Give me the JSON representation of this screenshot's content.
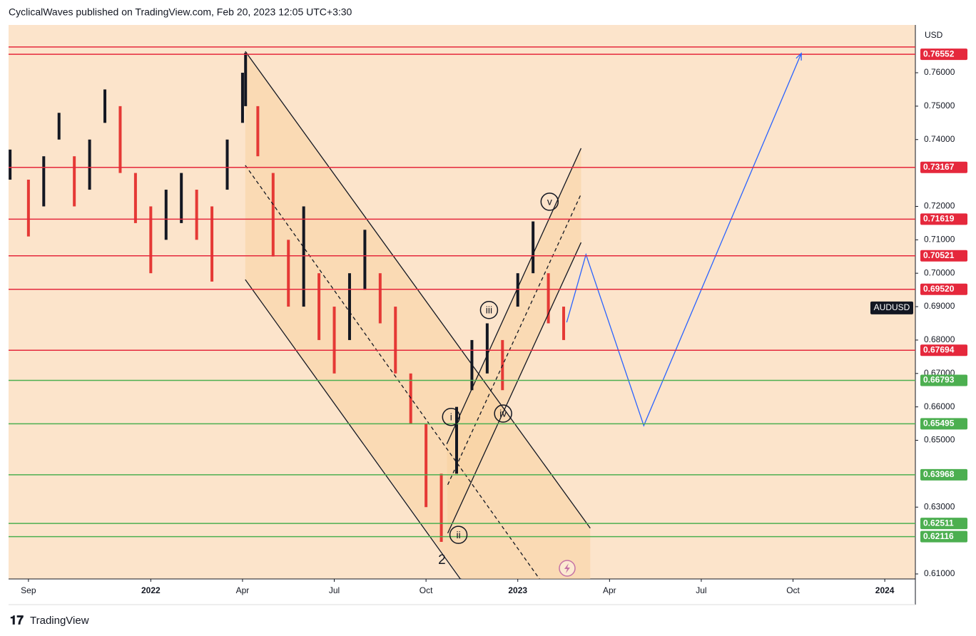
{
  "chart_data": {
    "type": "range-bar",
    "header": "CyclicalWaves published on TradingView.com, Feb 20, 2023 12:05 UTC+3:30",
    "currency": "USD",
    "symbol": "AUDUSD",
    "symbol_price": 0.6896,
    "brand": "TradingView",
    "xlim": [
      -0.65,
      29
    ],
    "ylim": [
      0.6085,
      0.7743
    ],
    "xticks": [
      {
        "value": 0,
        "label": "Sep"
      },
      {
        "value": 4,
        "label": "2022"
      },
      {
        "value": 7,
        "label": "Apr"
      },
      {
        "value": 10,
        "label": "Jul"
      },
      {
        "value": 13,
        "label": "Oct"
      },
      {
        "value": 16,
        "label": "2023"
      },
      {
        "value": 19,
        "label": "Apr"
      },
      {
        "value": 22,
        "label": "Jul"
      },
      {
        "value": 25,
        "label": "Oct"
      },
      {
        "value": 28,
        "label": "2024"
      }
    ],
    "yticks": [
      {
        "value": 0.76,
        "label": "0.76000"
      },
      {
        "value": 0.75,
        "label": "0.75000"
      },
      {
        "value": 0.74,
        "label": "0.74000"
      },
      {
        "value": 0.72,
        "label": "0.72000"
      },
      {
        "value": 0.71,
        "label": "0.71000"
      },
      {
        "value": 0.7,
        "label": "0.70000"
      },
      {
        "value": 0.69,
        "label": "0.69000"
      },
      {
        "value": 0.68,
        "label": "0.68000"
      },
      {
        "value": 0.67,
        "label": "0.67000"
      },
      {
        "value": 0.66,
        "label": "0.66000"
      },
      {
        "value": 0.65,
        "label": "0.65000"
      },
      {
        "value": 0.63,
        "label": "0.63000"
      },
      {
        "value": 0.61,
        "label": "0.61000"
      }
    ],
    "series": [
      {
        "name": "AUDUSD",
        "color": "#131722",
        "down_color": "#e53935",
        "x": [
          -0.6,
          0,
          0.5,
          1,
          1.5,
          2,
          2.5,
          3,
          3.5,
          4,
          4.5,
          5,
          5.5,
          6,
          6.5,
          7,
          7.1,
          7.5,
          8,
          8.5,
          9,
          9.5,
          10,
          10.5,
          11,
          11.5,
          12,
          12.5,
          13,
          13.5,
          14,
          14.5,
          15,
          15.5,
          16,
          16.5,
          17,
          17.5
        ],
        "high": [
          0.737,
          0.728,
          0.735,
          0.748,
          0.735,
          0.74,
          0.755,
          0.75,
          0.73,
          0.72,
          0.725,
          0.73,
          0.725,
          0.72,
          0.74,
          0.76,
          0.766,
          0.75,
          0.73,
          0.71,
          0.72,
          0.7,
          0.69,
          0.7,
          0.713,
          0.7,
          0.69,
          0.67,
          0.655,
          0.64,
          0.66,
          0.68,
          0.685,
          0.68,
          0.7,
          0.7155,
          0.7,
          0.69
        ],
        "low": [
          0.728,
          0.711,
          0.72,
          0.74,
          0.72,
          0.725,
          0.745,
          0.73,
          0.715,
          0.7,
          0.71,
          0.715,
          0.71,
          0.6975,
          0.725,
          0.745,
          0.75,
          0.735,
          0.705,
          0.69,
          0.69,
          0.68,
          0.67,
          0.68,
          0.695,
          0.685,
          0.67,
          0.655,
          0.63,
          0.6196,
          0.64,
          0.665,
          0.67,
          0.665,
          0.69,
          0.7,
          0.685,
          0.68
        ]
      }
    ],
    "levels": [
      {
        "value": 0.7677,
        "color": "#e5283c"
      },
      {
        "value": 0.76552,
        "label": "0.76552",
        "color": "#e5283c"
      },
      {
        "value": 0.73167,
        "label": "0.73167",
        "color": "#e5283c"
      },
      {
        "value": 0.71619,
        "label": "0.71619",
        "color": "#e5283c"
      },
      {
        "value": 0.70521,
        "label": "0.70521",
        "color": "#e5283c"
      },
      {
        "value": 0.6952,
        "label": "0.69520",
        "color": "#e5283c"
      },
      {
        "value": 0.67694,
        "label": "0.67694",
        "color": "#e5283c"
      },
      {
        "value": 0.66793,
        "label": "0.66793",
        "color": "#4caf50"
      },
      {
        "value": 0.65495,
        "label": "0.65495",
        "color": "#4caf50"
      },
      {
        "value": 0.63968,
        "label": "0.63968",
        "color": "#4caf50"
      },
      {
        "value": 0.62511,
        "label": "0.62511",
        "color": "#4caf50"
      },
      {
        "value": 0.62116,
        "label": "0.62116",
        "color": "#4caf50"
      }
    ],
    "trendlines": [
      {
        "x": [
          7.09,
          18.37
        ],
        "y": [
          0.7664,
          0.6237
        ]
      },
      {
        "x": [
          7.09,
          14.17
        ],
        "y": [
          0.6981,
          0.6079
        ]
      },
      {
        "x": [
          7.09,
          16.71
        ],
        "y": [
          0.7323,
          0.6085
        ],
        "dashed": true
      },
      {
        "x": [
          13.68,
          18.07
        ],
        "y": [
          0.6489,
          0.7374
        ]
      },
      {
        "x": [
          13.71,
          18.07
        ],
        "y": [
          0.6222,
          0.7092
        ]
      },
      {
        "x": [
          13.71,
          18.07
        ],
        "y": [
          0.6367,
          0.7237
        ],
        "dashed": true
      }
    ],
    "projection": {
      "color": "#2962ff",
      "x": [
        17.6,
        18.23,
        20.12,
        25.27
      ],
      "y": [
        0.6853,
        0.7056,
        0.6544,
        0.7658
      ]
    },
    "waves": [
      {
        "label": "i",
        "x": 13.82,
        "y": 0.657,
        "circle": true
      },
      {
        "label": "ii",
        "x": 14.06,
        "y": 0.6217,
        "circle": true
      },
      {
        "label": "iii",
        "x": 15.06,
        "y": 0.689,
        "circle": true
      },
      {
        "label": "iv",
        "x": 15.52,
        "y": 0.658,
        "circle": true
      },
      {
        "label": "v",
        "x": 17.04,
        "y": 0.7214,
        "circle": true
      },
      {
        "label": "2",
        "x": 13.52,
        "y": 0.6143,
        "circle": false
      }
    ]
  }
}
